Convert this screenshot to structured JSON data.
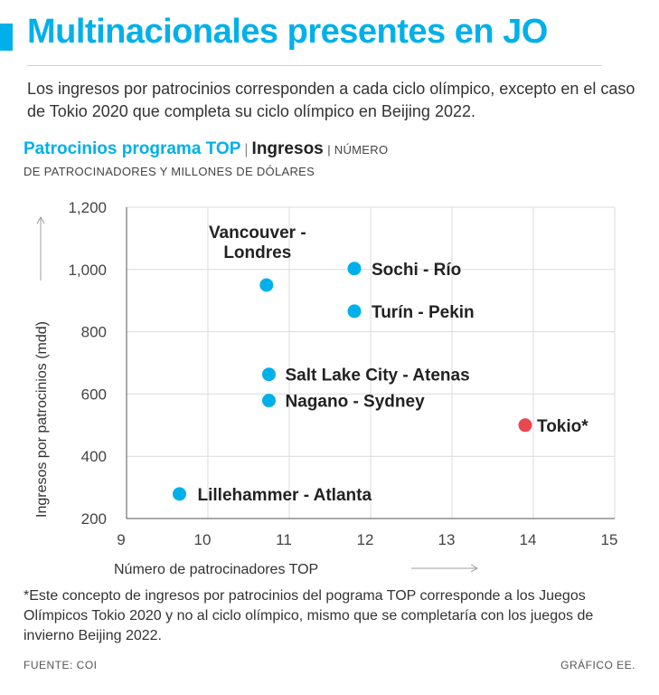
{
  "header": {
    "title": "Multinacionales presentes en JO",
    "subtitle": "Los ingresos por patrocinios corresponden a cada ciclo olímpico, excepto en el caso de Tokio 2020 que completa su ciclo olímpico en Beijing 2022.",
    "chart_label_a": "Patrocinios programa TOP",
    "separator": "|",
    "chart_label_b": "Ingresos",
    "chart_label_c": "| NÚMERO",
    "chart_label_d": "DE PATROCINADORES Y MILLONES DE DÓLARES"
  },
  "colors": {
    "accent": "#00b0ea",
    "highlight": "#e8484f",
    "grid": "#d9dcde",
    "axis": "#555555"
  },
  "chart_data": {
    "type": "scatter",
    "title": "Patrocinios programa TOP | Ingresos",
    "xlabel": "Número de patrocinadores TOP",
    "ylabel": "Ingresos por patrocinios (mdd)",
    "xlim": [
      9,
      15
    ],
    "ylim": [
      200,
      1200
    ],
    "x_ticks": [
      9,
      10,
      11,
      12,
      13,
      14,
      15
    ],
    "y_ticks": [
      200,
      400,
      600,
      800,
      1000,
      1200
    ],
    "y_tick_labels": [
      "200",
      "400",
      "600",
      "800",
      "1,000",
      "1,200"
    ],
    "grid": true,
    "points": [
      {
        "label": "Lillehammer - Atlanta",
        "x": 9.65,
        "y": 279,
        "highlight": false
      },
      {
        "label": "Nagano - Sydney",
        "x": 10.75,
        "y": 579,
        "highlight": false
      },
      {
        "label": "Salt Lake City - Atenas",
        "x": 10.75,
        "y": 663,
        "highlight": false
      },
      {
        "label": "Vancouver - Londres",
        "x": 10.72,
        "y": 950,
        "highlight": false
      },
      {
        "label": "Turín - Pekin",
        "x": 11.8,
        "y": 866,
        "highlight": false
      },
      {
        "label": "Sochi - Río",
        "x": 11.8,
        "y": 1003,
        "highlight": false
      },
      {
        "label": "Tokio*",
        "x": 13.9,
        "y": 500,
        "highlight": true
      }
    ]
  },
  "footer": {
    "note": "*Este concepto de ingresos por patrocinios del pograma TOP corresponde a los Juegos Olímpicos Tokio 2020 y no al ciclo olímpico, mismo que se completaría con los juegos de invierno Beijing 2022.",
    "source": "FUENTE: COI",
    "credit": "GRÁFICO EE."
  }
}
